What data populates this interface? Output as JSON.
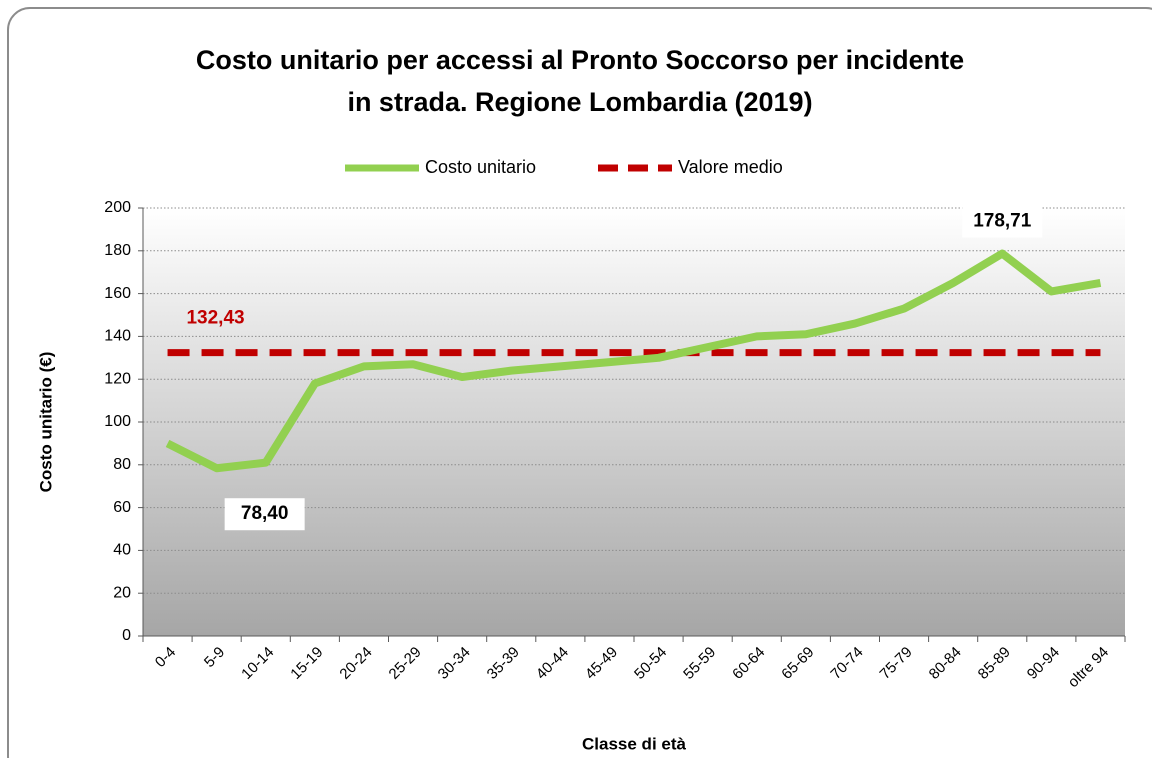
{
  "chart_data": {
    "type": "line",
    "title": [
      "Costo unitario per accessi al Pronto Soccorso per incidente",
      "in strada. Regione Lombardia (2019)"
    ],
    "x_label": "Classe di età",
    "y_label": "Costo unitario (€)",
    "categories": [
      "0-4",
      "5-9",
      "10-14",
      "15-19",
      "20-24",
      "25-29",
      "30-34",
      "35-39",
      "40-44",
      "45-49",
      "50-54",
      "55-59",
      "60-64",
      "65-69",
      "70-74",
      "75-79",
      "80-84",
      "85-89",
      "90-94",
      "oltre 94"
    ],
    "series": [
      {
        "name": "Costo unitario",
        "color": "#92d050",
        "dash": false,
        "values": [
          90,
          78.4,
          81,
          118,
          126,
          127,
          121,
          124,
          126,
          128,
          130,
          135,
          140,
          141,
          146,
          153,
          165,
          178.71,
          161,
          165
        ],
        "value_labels": [
          null,
          "78,40",
          null,
          null,
          null,
          null,
          null,
          null,
          null,
          null,
          null,
          null,
          null,
          null,
          null,
          null,
          null,
          "178,71",
          null,
          null
        ]
      },
      {
        "name": "Valore medio",
        "color": "#c00000",
        "dash": true,
        "values": [
          132.43,
          132.43,
          132.43,
          132.43,
          132.43,
          132.43,
          132.43,
          132.43,
          132.43,
          132.43,
          132.43,
          132.43,
          132.43,
          132.43,
          132.43,
          132.43,
          132.43,
          132.43,
          132.43,
          132.43
        ],
        "value_labels": [
          "132,43",
          null,
          null,
          null,
          null,
          null,
          null,
          null,
          null,
          null,
          null,
          null,
          null,
          null,
          null,
          null,
          null,
          null,
          null,
          null
        ]
      }
    ],
    "ylim": [
      0,
      200
    ],
    "yticks": [
      0,
      20,
      40,
      60,
      80,
      100,
      120,
      140,
      160,
      180,
      200
    ],
    "grid": true
  }
}
